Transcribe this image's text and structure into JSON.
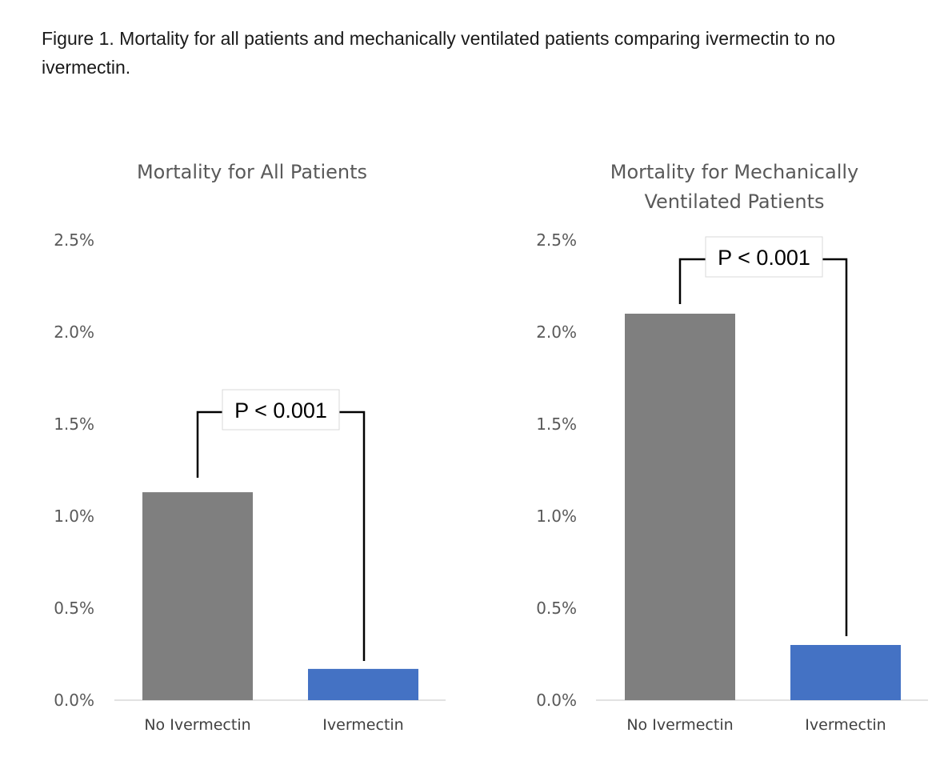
{
  "caption": {
    "label": "Figure 1.",
    "text": " Mortality for all patients and mechanically ventilated patients comparing ivermectin to no ivermectin."
  },
  "chart_data": [
    {
      "type": "bar",
      "title": "Mortality for All Patients",
      "categories": [
        "No Ivermectin",
        "Ivermectin"
      ],
      "values": [
        1.13,
        0.17
      ],
      "value_unit": "%",
      "colors": [
        "#7f7f7f",
        "#4472c4"
      ],
      "ylim": [
        0,
        2.5
      ],
      "yticks": [
        "0.0%",
        "0.5%",
        "1.0%",
        "1.5%",
        "2.0%",
        "2.5%"
      ],
      "grid": false,
      "annotation": "P < 0.001"
    },
    {
      "type": "bar",
      "title": "Mortality for Mechanically Ventilated Patients",
      "title_lines": [
        "Mortality for Mechanically",
        "Ventilated Patients"
      ],
      "categories": [
        "No Ivermectin",
        "Ivermectin"
      ],
      "values": [
        2.1,
        0.3
      ],
      "value_unit": "%",
      "colors": [
        "#7f7f7f",
        "#4472c4"
      ],
      "ylim": [
        0,
        2.5
      ],
      "yticks": [
        "0.0%",
        "0.5%",
        "1.0%",
        "1.5%",
        "2.0%",
        "2.5%"
      ],
      "grid": false,
      "annotation": "P < 0.001"
    }
  ]
}
